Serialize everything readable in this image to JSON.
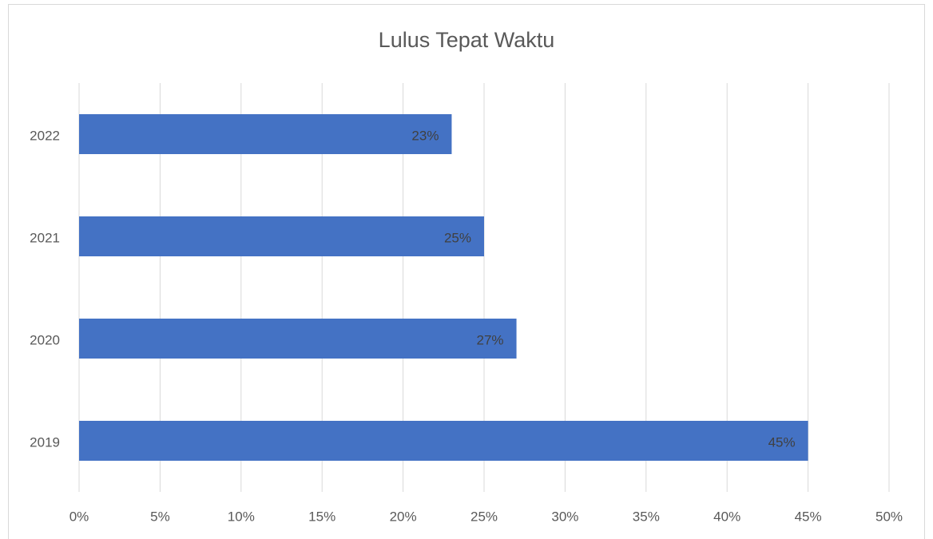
{
  "chart_data": {
    "type": "bar",
    "orientation": "horizontal",
    "title": "Lulus Tepat Waktu",
    "categories": [
      "2019",
      "2020",
      "2021",
      "2022"
    ],
    "values": [
      45,
      27,
      25,
      23
    ],
    "value_labels": [
      "45%",
      "27%",
      "25%",
      "23%"
    ],
    "color": "#4472c4",
    "xlim": [
      0,
      50
    ],
    "xticks": [
      {
        "value": 0,
        "label": "0%"
      },
      {
        "value": 5,
        "label": "5%"
      },
      {
        "value": 10,
        "label": "10%"
      },
      {
        "value": 15,
        "label": "15%"
      },
      {
        "value": 20,
        "label": "20%"
      },
      {
        "value": 25,
        "label": "25%"
      },
      {
        "value": 30,
        "label": "30%"
      },
      {
        "value": 35,
        "label": "35%"
      },
      {
        "value": 40,
        "label": "40%"
      },
      {
        "value": 45,
        "label": "45%"
      },
      {
        "value": 50,
        "label": "50%"
      }
    ],
    "grid": true
  }
}
